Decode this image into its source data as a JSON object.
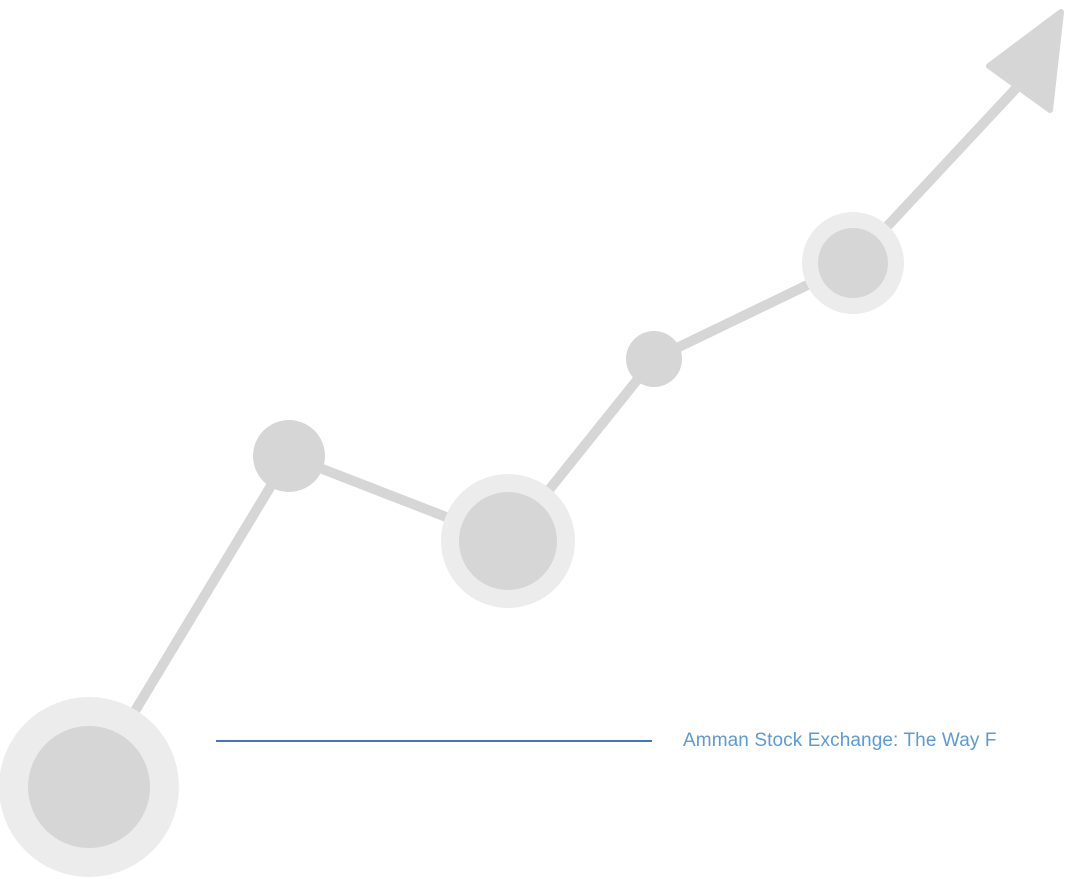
{
  "caption": {
    "text": "Amman Stock Exchange: The Way F"
  },
  "colors": {
    "background": "#ffffff",
    "graphic_line": "#d6d6d6",
    "node_fill": "#d6d6d6",
    "node_ring": "#ececec",
    "divider": "#4472c4",
    "caption_text": "#5b9bd5"
  },
  "icons": {
    "graphic": "rising-trend-arrow-icon"
  }
}
